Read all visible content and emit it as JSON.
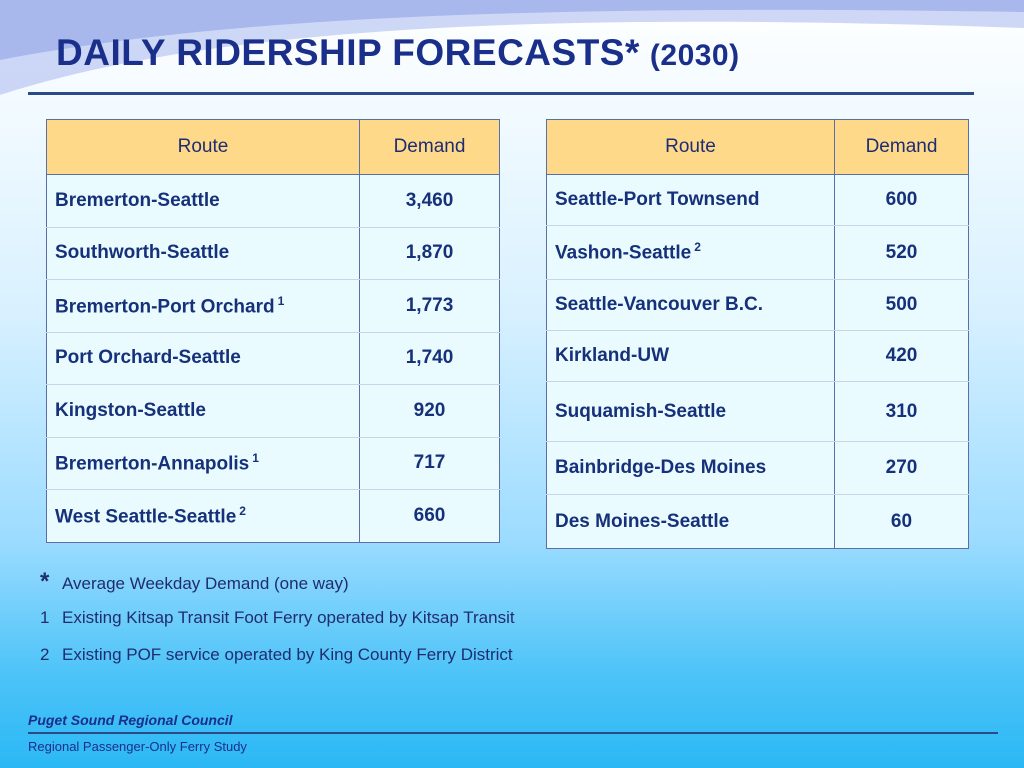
{
  "title": {
    "main": "DAILY RIDERSHIP FORECASTS*",
    "sub": "(2030)"
  },
  "headers": {
    "route": "Route",
    "demand": "Demand"
  },
  "left_table": [
    {
      "route": "Bremerton-Seattle",
      "sup": "",
      "demand": "3,460"
    },
    {
      "route": "Southworth-Seattle",
      "sup": "",
      "demand": "1,870"
    },
    {
      "route": "Bremerton-Port Orchard",
      "sup": "1",
      "demand": "1,773"
    },
    {
      "route": "Port Orchard-Seattle",
      "sup": "",
      "demand": "1,740"
    },
    {
      "route": "Kingston-Seattle",
      "sup": "",
      "demand": "920"
    },
    {
      "route": "Bremerton-Annapolis",
      "sup": "1",
      "demand": "717"
    },
    {
      "route": "West Seattle-Seattle",
      "sup": "2",
      "demand": "660"
    }
  ],
  "right_table": [
    {
      "route": "Seattle-Port Townsend",
      "sup": "",
      "demand": "600"
    },
    {
      "route": "Vashon-Seattle",
      "sup": "2",
      "demand": "520"
    },
    {
      "route": "Seattle-Vancouver B.C.",
      "sup": "",
      "demand": "500"
    },
    {
      "route": "Kirkland-UW",
      "sup": "",
      "demand": "420"
    },
    {
      "route": "Suquamish-Seattle",
      "sup": "",
      "demand": "310"
    },
    {
      "route": "Bainbridge-Des Moines",
      "sup": "",
      "demand": "270"
    },
    {
      "route": "Des Moines-Seattle",
      "sup": "",
      "demand": "60"
    }
  ],
  "footnotes": [
    {
      "marker": "*",
      "text": "Average Weekday Demand (one way)"
    },
    {
      "marker": "1",
      "text": "Existing Kitsap Transit Foot Ferry operated by Kitsap Transit"
    },
    {
      "marker": "2",
      "text": "Existing POF service operated by King County Ferry District"
    }
  ],
  "footer": {
    "org": "Puget Sound Regional Council",
    "study": "Regional Passenger-Only Ferry Study"
  },
  "colors": {
    "title": "#1a2f8a",
    "header_fill": "#ffd98a",
    "cell_fill": "#e9fbff"
  }
}
